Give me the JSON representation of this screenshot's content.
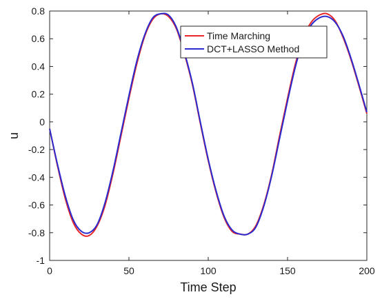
{
  "chart_data": {
    "type": "line",
    "xlabel": "Time Step",
    "ylabel": "u",
    "xlim": [
      0,
      200
    ],
    "ylim": [
      -1,
      0.8
    ],
    "xticks": [
      0,
      50,
      100,
      150,
      200
    ],
    "yticks": [
      -1,
      -0.8,
      -0.6,
      -0.4,
      -0.2,
      0,
      0.2,
      0.4,
      0.6,
      0.8
    ],
    "grid": false,
    "legend_position": "top-right",
    "series": [
      {
        "name": "Time Marching",
        "color": "#e8262a",
        "x": [
          0,
          5,
          10,
          15,
          20,
          25,
          30,
          35,
          40,
          45,
          50,
          55,
          60,
          65,
          70,
          75,
          80,
          85,
          90,
          95,
          100,
          105,
          110,
          115,
          120,
          125,
          130,
          135,
          140,
          145,
          150,
          155,
          160,
          165,
          170,
          175,
          180,
          185,
          190,
          195,
          200
        ],
        "y": [
          -0.05,
          -0.32,
          -0.56,
          -0.73,
          -0.81,
          -0.82,
          -0.75,
          -0.6,
          -0.37,
          -0.1,
          0.17,
          0.42,
          0.62,
          0.74,
          0.78,
          0.76,
          0.67,
          0.49,
          0.27,
          -0.01,
          -0.28,
          -0.51,
          -0.69,
          -0.79,
          -0.81,
          -0.81,
          -0.75,
          -0.6,
          -0.38,
          -0.1,
          0.17,
          0.42,
          0.61,
          0.72,
          0.77,
          0.78,
          0.73,
          0.61,
          0.45,
          0.26,
          0.06
        ]
      },
      {
        "name": "DCT+LASSO Method",
        "color": "#2b2bd0",
        "x": [
          0,
          5,
          10,
          15,
          20,
          25,
          30,
          35,
          40,
          45,
          50,
          55,
          60,
          65,
          70,
          75,
          80,
          85,
          90,
          95,
          100,
          105,
          110,
          115,
          120,
          125,
          130,
          135,
          140,
          145,
          150,
          155,
          160,
          165,
          170,
          175,
          180,
          185,
          190,
          195,
          200
        ],
        "y": [
          -0.05,
          -0.31,
          -0.54,
          -0.71,
          -0.79,
          -0.8,
          -0.74,
          -0.58,
          -0.35,
          -0.08,
          0.19,
          0.44,
          0.63,
          0.75,
          0.78,
          0.77,
          0.68,
          0.5,
          0.28,
          0.0,
          -0.27,
          -0.5,
          -0.68,
          -0.78,
          -0.81,
          -0.81,
          -0.76,
          -0.61,
          -0.39,
          -0.12,
          0.15,
          0.4,
          0.59,
          0.7,
          0.75,
          0.76,
          0.72,
          0.62,
          0.46,
          0.27,
          0.07
        ]
      }
    ]
  }
}
